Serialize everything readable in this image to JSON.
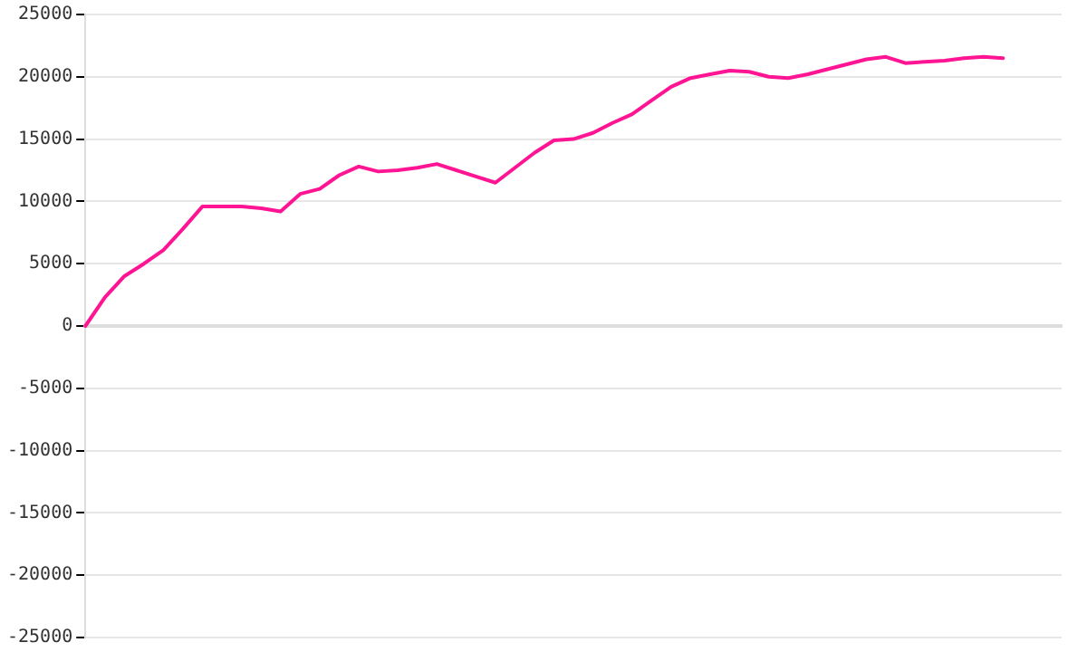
{
  "chart_data": {
    "type": "line",
    "categories": [
      null,
      null,
      null,
      null,
      null,
      null,
      null,
      null,
      null,
      null,
      null,
      null,
      null,
      null,
      null,
      null,
      null,
      null,
      null,
      null,
      null,
      null,
      null,
      null,
      null,
      null,
      null,
      null,
      null,
      null,
      null,
      null,
      null,
      null,
      null,
      null,
      null,
      null,
      null,
      null,
      null,
      null,
      null,
      null,
      null,
      null,
      null,
      null,
      null,
      null,
      null
    ],
    "series": [
      {
        "color": "#ff1493",
        "values": [
          0,
          2300,
          4000,
          5000,
          6100,
          7800,
          9600,
          9600,
          9600,
          9450,
          9200,
          10600,
          11000,
          12100,
          12800,
          12400,
          12500,
          12700,
          13000,
          12500,
          12000,
          11500,
          12700,
          13900,
          14900,
          15000,
          15500,
          16300,
          17000,
          18100,
          19200,
          19900,
          20200,
          20500,
          20400,
          20000,
          19900,
          20200,
          20600,
          21000,
          21400,
          21600,
          21100,
          21200,
          21300,
          21500,
          21600,
          21500,
          null,
          null,
          null
        ]
      }
    ],
    "ylim": [
      -25000,
      25000
    ],
    "yticks": [
      -25000,
      -20000,
      -15000,
      -10000,
      -5000,
      0,
      5000,
      10000,
      15000,
      20000,
      25000
    ],
    "grid": "y",
    "legend": false,
    "marker": "none",
    "line_style": "solid"
  }
}
